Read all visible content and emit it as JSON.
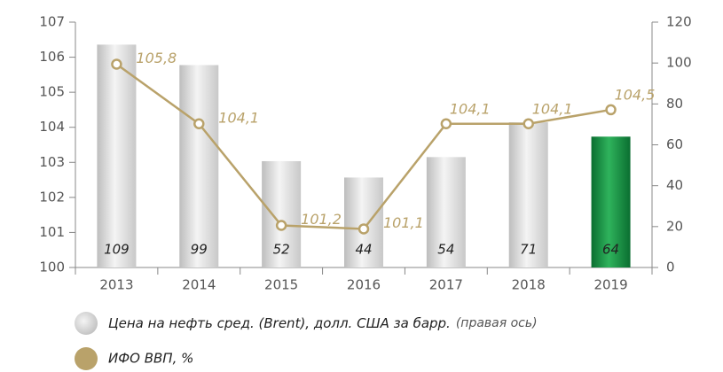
{
  "chart_data": {
    "type": "bar_line",
    "categories": [
      "2013",
      "2014",
      "2015",
      "2016",
      "2017",
      "2018",
      "2019"
    ],
    "series": [
      {
        "name": "Цена на нефть сред. (Brent), долл. США за барр.",
        "name_note": "(правая ось)",
        "type": "bar",
        "axis": "y2",
        "color": "#c4c4c4",
        "colors": [
          "#c4c4c4",
          "#c4c4c4",
          "#c4c4c4",
          "#c4c4c4",
          "#c4c4c4",
          "#c4c4c4",
          "#0e8a3f"
        ],
        "values": [
          109,
          99,
          52,
          44,
          54,
          71,
          64
        ]
      },
      {
        "name": "ИФО ВВП, %",
        "type": "line",
        "color": "#b9a26a",
        "values": [
          105.8,
          104.1,
          101.2,
          101.1,
          104.1,
          104.1,
          104.5
        ],
        "value_labels": [
          "105,8",
          "104,1",
          "101,2",
          "101,1",
          "104,1",
          "104,1",
          "104,5"
        ]
      }
    ],
    "ylim": [
      100,
      107
    ],
    "yticks": [
      100,
      101,
      102,
      103,
      104,
      105,
      106,
      107
    ],
    "y2lim": [
      0,
      120
    ],
    "y2ticks": [
      0,
      20,
      40,
      60,
      80,
      100,
      120
    ]
  }
}
